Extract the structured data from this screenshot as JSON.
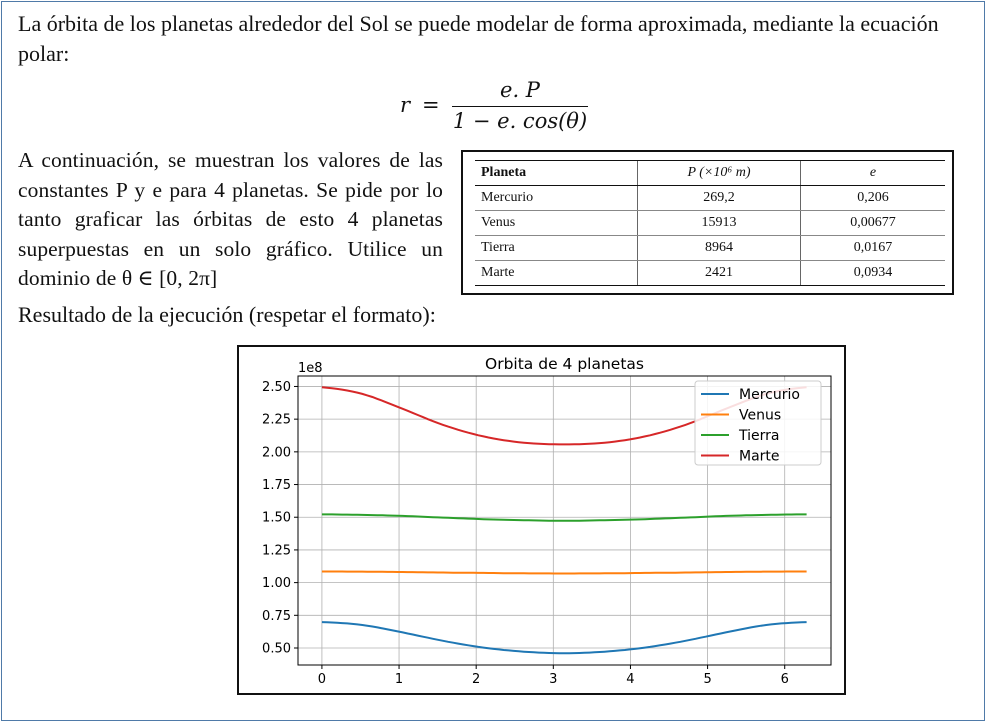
{
  "intro_text": "La órbita de los planetas alrededor del Sol se puede modelar de forma aproximada, mediante la ecuación polar:",
  "equation": {
    "lhs": "r",
    "equals": "=",
    "numerator": "e. P",
    "denominator": "1 − e. cos(θ)"
  },
  "description_text": "A continuación, se muestran los valores de las constantes P y e para 4 planetas. Se pide por lo tanto graficar las órbitas de esto 4 planetas superpuestas en un solo gráfico. Utilice un dominio de θ ∈ [0, 2π]",
  "table": {
    "headers": [
      "Planeta",
      "P (×10⁶ m)",
      "e"
    ],
    "rows": [
      [
        "Mercurio",
        "269,2",
        "0,206"
      ],
      [
        "Venus",
        "15913",
        "0,00677"
      ],
      [
        "Tierra",
        "8964",
        "0,0167"
      ],
      [
        "Marte",
        "2421",
        "0,0934"
      ]
    ]
  },
  "result_label": "Resultado de la ejecución (respetar el formato):",
  "chart_data": {
    "type": "line",
    "title": "Orbita de 4 planetas",
    "offset_text": "1e8",
    "xlabel": "",
    "ylabel": "",
    "xlim": [
      -0.31,
      6.6
    ],
    "ylim": [
      0.37,
      2.58
    ],
    "xticks": [
      0,
      1,
      2,
      3,
      4,
      5,
      6
    ],
    "xtick_labels": [
      "0",
      "1",
      "2",
      "3",
      "4",
      "5",
      "6"
    ],
    "yticks": [
      0.5,
      0.75,
      1.0,
      1.25,
      1.5,
      1.75,
      2.0,
      2.25,
      2.5
    ],
    "ytick_labels": [
      "0.50",
      "0.75",
      "1.00",
      "1.25",
      "1.50",
      "1.75",
      "2.00",
      "2.25",
      "2.50"
    ],
    "grid": true,
    "legend_position": "upper right",
    "x": [
      0,
      0.5236,
      1.0472,
      1.5708,
      2.0944,
      2.618,
      3.1416,
      3.6652,
      4.1888,
      4.7124,
      5.236,
      5.7596,
      6.2832
    ],
    "series": [
      {
        "name": "Mercurio",
        "color": "#1f77b4",
        "values": [
          0.698,
          0.676,
          0.619,
          0.555,
          0.503,
          0.472,
          0.46,
          0.472,
          0.503,
          0.555,
          0.619,
          0.676,
          0.698
        ]
      },
      {
        "name": "Venus",
        "color": "#ff7f0e",
        "values": [
          1.085,
          1.084,
          1.081,
          1.077,
          1.074,
          1.071,
          1.07,
          1.071,
          1.074,
          1.077,
          1.081,
          1.084,
          1.085
        ]
      },
      {
        "name": "Tierra",
        "color": "#2ca02c",
        "values": [
          1.522,
          1.518,
          1.51,
          1.497,
          1.485,
          1.477,
          1.473,
          1.477,
          1.485,
          1.497,
          1.51,
          1.518,
          1.522
        ]
      },
      {
        "name": "Marte",
        "color": "#d62728",
        "values": [
          2.494,
          2.443,
          2.329,
          2.206,
          2.118,
          2.07,
          2.057,
          2.07,
          2.118,
          2.206,
          2.329,
          2.443,
          2.494
        ]
      }
    ]
  }
}
